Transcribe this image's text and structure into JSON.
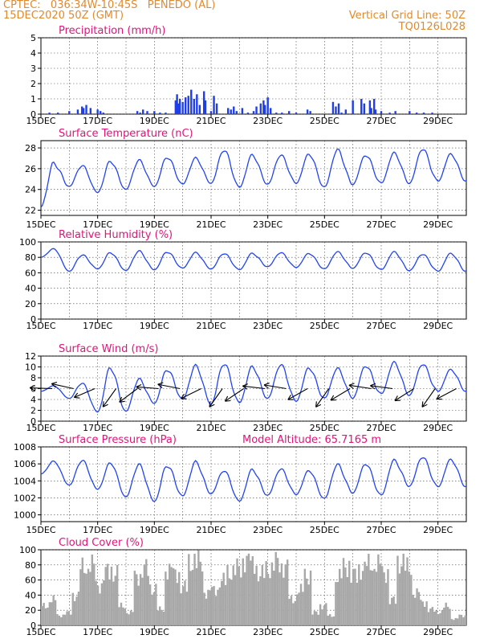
{
  "header": {
    "line1": "CPTEC:   036:34W-10:45S   PENEDO (AL)",
    "line2": "15DEC2020 50Z (GMT)",
    "grid_note": "Vertical Grid Line: 50Z",
    "code": "TQ0126L028"
  },
  "colors": {
    "header": "#e08a2e",
    "title": "#e0147a",
    "line": "#2244ee",
    "bars": "#1f3ee8",
    "cloud": "#a8a8a8",
    "grid": "#444444"
  },
  "x_ticks": [
    "15DEC",
    "17DEC",
    "19DEC",
    "21DEC",
    "23DEC",
    "25DEC",
    "27DEC",
    "29DEC"
  ],
  "chart_data": [
    {
      "type": "bar",
      "title": "Precipitation (mm/h)",
      "ylim": [
        0,
        5
      ],
      "yticks": [
        0,
        1,
        2,
        3,
        4,
        5
      ],
      "x": [
        0.3,
        0.6,
        1.0,
        1.3,
        1.45,
        1.5,
        1.6,
        1.75,
        2.0,
        2.1,
        2.2,
        3.4,
        3.5,
        3.6,
        3.75,
        4.0,
        4.2,
        4.4,
        4.75,
        4.8,
        4.85,
        4.9,
        5.0,
        5.1,
        5.2,
        5.3,
        5.4,
        5.5,
        5.6,
        5.75,
        5.8,
        6.0,
        6.1,
        6.2,
        6.6,
        6.7,
        6.8,
        6.9,
        7.1,
        7.3,
        7.5,
        7.6,
        7.75,
        7.85,
        7.9,
        8.0,
        8.1,
        8.3,
        8.5,
        8.75,
        9.0,
        9.4,
        9.5,
        10.3,
        10.4,
        10.5,
        10.6,
        10.75,
        11.0,
        11.3,
        11.4,
        11.6,
        11.65,
        11.75,
        11.8,
        12.0,
        12.3,
        12.5,
        13.0,
        13.25,
        13.5,
        13.8
      ],
      "y": [
        0.1,
        0.1,
        0.2,
        0.3,
        0.5,
        0.4,
        0.6,
        0.4,
        0.3,
        0.2,
        0.1,
        0.2,
        0.1,
        0.3,
        0.2,
        0.2,
        0.1,
        0.1,
        0.9,
        1.3,
        0.7,
        1.0,
        0.8,
        1.1,
        1.2,
        1.6,
        1.0,
        1.3,
        0.6,
        1.5,
        0.9,
        0.2,
        1.2,
        0.7,
        0.4,
        0.3,
        0.5,
        0.2,
        0.4,
        0.1,
        0.2,
        0.5,
        0.7,
        0.9,
        0.6,
        1.1,
        0.4,
        0.1,
        0.1,
        0.2,
        0.1,
        0.3,
        0.2,
        0.8,
        0.5,
        0.7,
        0.1,
        0.3,
        0.9,
        1.0,
        0.7,
        0.9,
        0.4,
        1.0,
        0.3,
        0.2,
        0.1,
        0.2,
        0.2,
        0.1,
        0.1,
        0.1
      ]
    },
    {
      "type": "line",
      "title": "Surface Temperature (nC)",
      "ylim": [
        21.5,
        28.7
      ],
      "yticks": [
        22,
        24,
        26,
        28
      ],
      "start": 22.3,
      "min": [
        null,
        24.3,
        23.7,
        24.0,
        24.3,
        24.5,
        24.6,
        24.2,
        24.5,
        24.6,
        24.2,
        24.5,
        24.6,
        24.6,
        24.8
      ],
      "max": [
        26.5,
        26.3,
        26.7,
        26.8,
        27.1,
        27.0,
        27.8,
        27.3,
        27.3,
        27.4,
        27.8,
        27.3,
        27.5,
        27.9,
        27.4
      ]
    },
    {
      "type": "line",
      "title": "Relative Humidity (%)",
      "ylim": [
        0,
        100
      ],
      "yticks": [
        0,
        20,
        40,
        60,
        80,
        100
      ],
      "start": 80,
      "min": [
        null,
        62,
        65,
        63,
        64,
        66,
        65,
        64,
        68,
        67,
        65,
        66,
        64,
        63,
        62
      ],
      "max": [
        91,
        83,
        86,
        88,
        87,
        86,
        85,
        85,
        86,
        85,
        87,
        86,
        87,
        84,
        85
      ]
    },
    {
      "type": "line",
      "title": "Surface Wind (m/s)",
      "ylim": [
        0,
        12
      ],
      "yticks": [
        0,
        2,
        4,
        6,
        8,
        10,
        12
      ],
      "start": 5.5,
      "min": [
        null,
        4.2,
        1.7,
        1.8,
        3.3,
        4.0,
        3.2,
        3.4,
        4.2,
        3.7,
        4.2,
        4.3,
        5.0,
        4.8,
        5.5
      ],
      "max": [
        6.5,
        7.0,
        9.8,
        7.7,
        9.5,
        10.2,
        10.6,
        10.0,
        10.4,
        9.8,
        9.7,
        10.2,
        10.8,
        10.5,
        9.5
      ]
    },
    {
      "type": "line",
      "title": "Surface Pressure (hPa)",
      "ylim": [
        999.2,
        1008
      ],
      "yticks": [
        1000,
        1002,
        1004,
        1006,
        1008
      ],
      "start": 1004.8,
      "min": [
        null,
        1003.5,
        1003.0,
        1002.1,
        1001.6,
        1002.2,
        1002.5,
        1001.6,
        1002.3,
        1002.4,
        1001.9,
        1002.6,
        1002.3,
        1003.4,
        1003.3
      ],
      "max": [
        1006.3,
        1006.4,
        1006.1,
        1005.9,
        1005.8,
        1006.2,
        1005.2,
        1005.3,
        1005.4,
        1005.2,
        1005.9,
        1006.0,
        1006.4,
        1006.8,
        1006.5
      ]
    },
    {
      "type": "area",
      "title": "Cloud Cover (%)",
      "ylim": [
        0,
        100
      ],
      "yticks": [
        0,
        20,
        40,
        60,
        80,
        100
      ],
      "levels": [
        30,
        40,
        15,
        20,
        45,
        90,
        95,
        60,
        85,
        80,
        30,
        20,
        75,
        90,
        55,
        25,
        85,
        80,
        60,
        95,
        100,
        50,
        55,
        70,
        80,
        90,
        100,
        95,
        80,
        85,
        100,
        90,
        40,
        55,
        75,
        20,
        30,
        15,
        75,
        90,
        80,
        85,
        95,
        95,
        80,
        40,
        95,
        90,
        50,
        35,
        25,
        20,
        30,
        10,
        15
      ]
    },
    {
      "type": "text",
      "title": "Model Altitude: 65.7165 m"
    }
  ]
}
